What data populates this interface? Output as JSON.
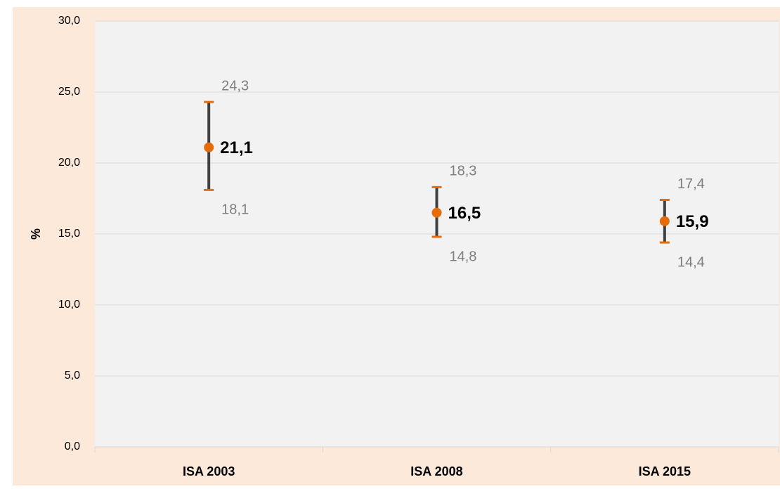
{
  "chart_data": {
    "type": "errorbar",
    "y_label": "%",
    "categories": [
      "ISA 2003",
      "ISA 2008",
      "ISA 2015"
    ],
    "values": [
      21.1,
      16.5,
      15.9
    ],
    "value_labels": [
      "21,1",
      "16,5",
      "15,9"
    ],
    "upper": [
      24.3,
      18.3,
      17.4
    ],
    "upper_labels": [
      "24,3",
      "18,3",
      "17,4"
    ],
    "lower": [
      18.1,
      14.8,
      14.4
    ],
    "lower_labels": [
      "18,1",
      "14,8",
      "14,4"
    ],
    "color": "#e46c0a",
    "bar_color": "#404040",
    "ylim": [
      0,
      30
    ],
    "yticks": [
      {
        "value": 0,
        "label": "0,0"
      },
      {
        "value": 5,
        "label": "5,0"
      },
      {
        "value": 10,
        "label": "10,0"
      },
      {
        "value": 15,
        "label": "15,0"
      },
      {
        "value": 20,
        "label": "20,0"
      },
      {
        "value": 25,
        "label": "25,0"
      },
      {
        "value": 30,
        "label": "30,0"
      }
    ],
    "grid": true
  }
}
